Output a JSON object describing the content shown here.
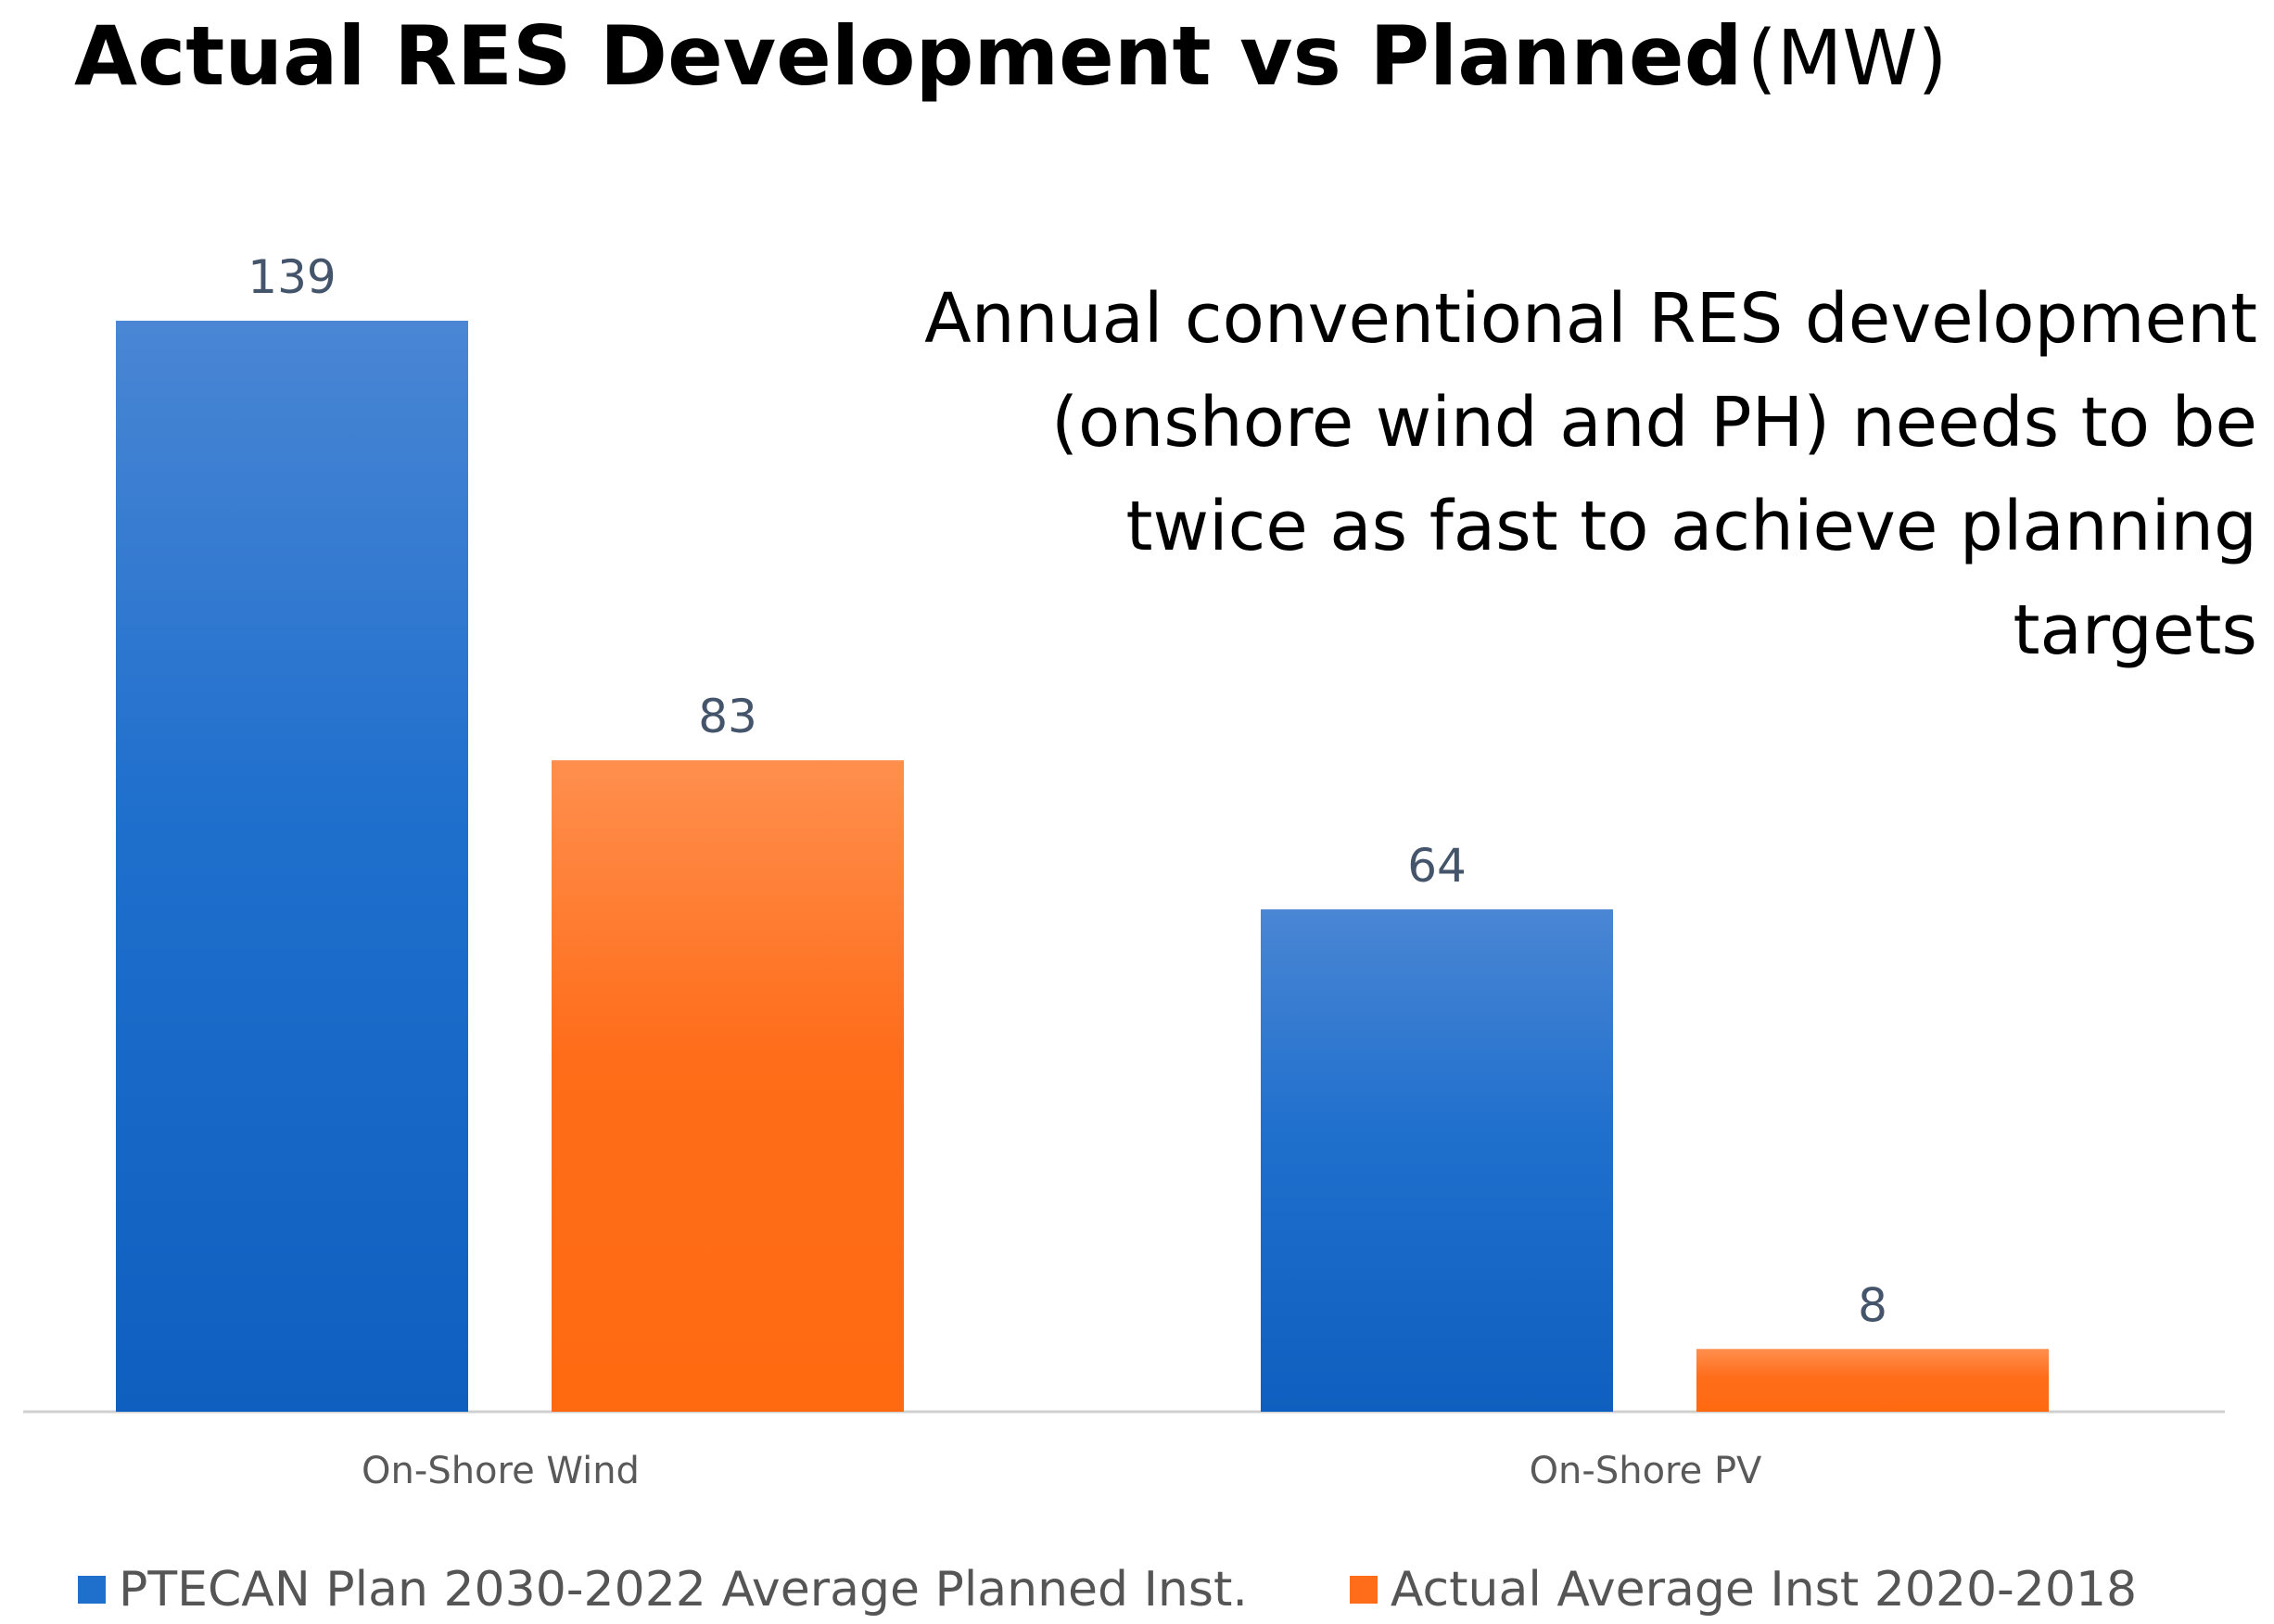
{
  "title": {
    "main": "Actual RES Development vs Planned",
    "unit": "(MW)"
  },
  "annotation": {
    "lines": [
      "Annual conventional RES development",
      "(onshore wind and PH) needs to be",
      "twice as fast to achieve planning",
      "targets"
    ]
  },
  "chart_data": {
    "type": "bar",
    "title": "Actual RES Development vs Planned (MW)",
    "categories": [
      "On-Shore Wind",
      "On-Shore PV"
    ],
    "series": [
      {
        "name": "PTECAN Plan 2030-2022 Average Planned Inst.",
        "values": [
          139,
          64
        ]
      },
      {
        "name": "Actual Average Inst  2020-2018",
        "values": [
          83,
          8
        ]
      }
    ],
    "ylim": [
      0,
      139
    ],
    "xlabel": "",
    "ylabel": "",
    "legend_position": "bottom",
    "grid": false
  },
  "colors": {
    "plan": "#1f6fcd",
    "actual": "#ff6d1a",
    "axis": "#d0d0d0",
    "data_label": "#44546a",
    "category_label": "#595959"
  }
}
